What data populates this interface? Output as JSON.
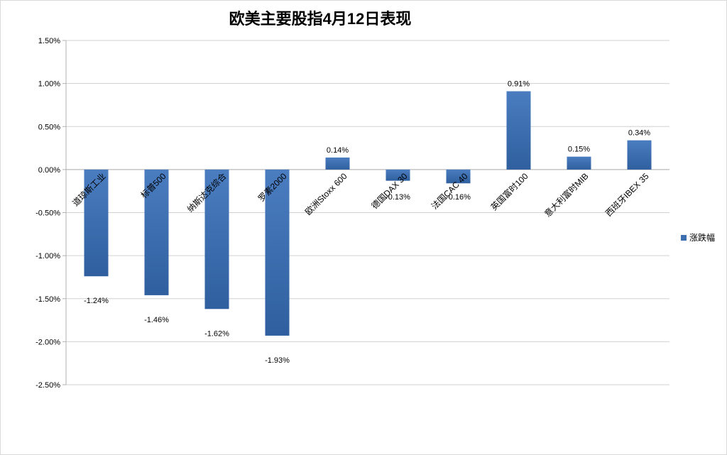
{
  "chart_data": {
    "type": "bar",
    "title": "欧美主要股指4月12日表现",
    "categories": [
      "道琼斯工业",
      "标普500",
      "纳斯达克综合",
      "罗素2000",
      "欧洲Stoxx 600",
      "德国DAX 30",
      "法国CAC 40",
      "英国富时100",
      "意大利富时MIB",
      "西班牙IBEX 35"
    ],
    "series": [
      {
        "name": "涨跌幅",
        "values": [
          -1.24,
          -1.46,
          -1.62,
          -1.93,
          0.14,
          -0.13,
          -0.16,
          0.91,
          0.15,
          0.34
        ],
        "labels": [
          "-1.24%",
          "-1.46%",
          "-1.62%",
          "-1.93%",
          "0.14%",
          "-0.13%",
          "-0.16%",
          "0.91%",
          "0.15%",
          "0.34%"
        ]
      }
    ],
    "ylim": [
      -2.5,
      1.5
    ],
    "yticks": [
      "1.50%",
      "1.00%",
      "0.50%",
      "0.00%",
      "-0.50%",
      "-1.00%",
      "-1.50%",
      "-2.00%",
      "-2.50%"
    ],
    "grid": true,
    "legend_position": "right",
    "bar_color": "#3d6fb0",
    "xlabel": "",
    "ylabel": ""
  }
}
